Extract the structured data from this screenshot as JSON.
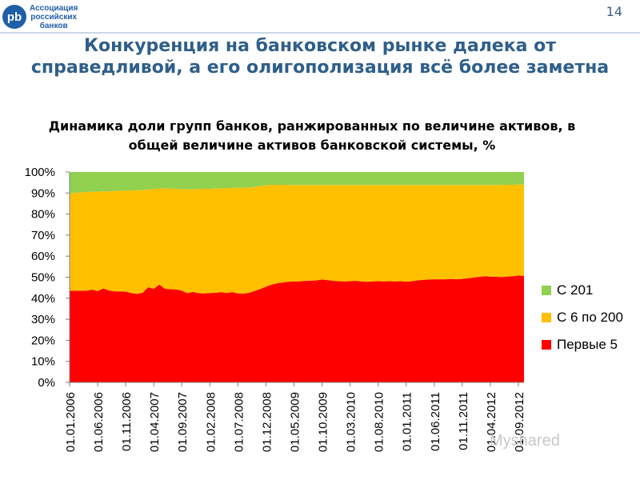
{
  "header": {
    "logo_mark": "pb",
    "logo_lines": [
      "Ассоциация",
      "российских",
      "банков"
    ],
    "page_number": "14",
    "title": "Конкуренция на банковском рынке далека от справедливой, а его олигополизация всё более заметна"
  },
  "watermark": "Myshared",
  "colors": {
    "c201": "#92d050",
    "c6_200": "#ffc000",
    "top5": "#ff0000"
  },
  "chart_data": {
    "type": "area",
    "stacked": true,
    "title": "Динамика доли групп банков, ранжированных по величине активов, в общей величине активов банковской системы, %",
    "xlabel": "",
    "ylabel": "",
    "ylim": [
      0,
      100
    ],
    "y_ticks": [
      "0%",
      "10%",
      "20%",
      "30%",
      "40%",
      "50%",
      "60%",
      "70%",
      "80%",
      "90%",
      "100%"
    ],
    "x_tick_labels": [
      "01.01.2006",
      "01.06.2006",
      "01.11.2006",
      "01.04.2007",
      "01.09.2007",
      "01.02.2008",
      "01.07.2008",
      "01.12.2008",
      "01.05.2009",
      "01.10.2009",
      "01.03.2010",
      "01.08.2010",
      "01.01.2011",
      "01.06.2011",
      "01.11.2011",
      "01.04.2012",
      "01.09.2012"
    ],
    "x": [
      "01.01.2006",
      "01.02.2006",
      "01.03.2006",
      "01.04.2006",
      "01.05.2006",
      "01.06.2006",
      "01.07.2006",
      "01.08.2006",
      "01.09.2006",
      "01.10.2006",
      "01.11.2006",
      "01.12.2006",
      "01.01.2007",
      "01.02.2007",
      "01.03.2007",
      "01.04.2007",
      "01.05.2007",
      "01.06.2007",
      "01.07.2007",
      "01.08.2007",
      "01.09.2007",
      "01.10.2007",
      "01.11.2007",
      "01.12.2007",
      "01.01.2008",
      "01.02.2008",
      "01.03.2008",
      "01.04.2008",
      "01.05.2008",
      "01.06.2008",
      "01.07.2008",
      "01.08.2008",
      "01.09.2008",
      "01.10.2008",
      "01.11.2008",
      "01.12.2008",
      "01.01.2009",
      "01.02.2009",
      "01.03.2009",
      "01.04.2009",
      "01.05.2009",
      "01.06.2009",
      "01.07.2009",
      "01.08.2009",
      "01.09.2009",
      "01.10.2009",
      "01.11.2009",
      "01.12.2009",
      "01.01.2010",
      "01.02.2010",
      "01.03.2010",
      "01.04.2010",
      "01.05.2010",
      "01.06.2010",
      "01.07.2010",
      "01.08.2010",
      "01.09.2010",
      "01.10.2010",
      "01.11.2010",
      "01.12.2010",
      "01.01.2011",
      "01.02.2011",
      "01.03.2011",
      "01.04.2011",
      "01.05.2011",
      "01.06.2011",
      "01.07.2011",
      "01.08.2011",
      "01.09.2011",
      "01.10.2011",
      "01.11.2011",
      "01.12.2011",
      "01.01.2012",
      "01.02.2012",
      "01.03.2012",
      "01.04.2012",
      "01.05.2012",
      "01.06.2012",
      "01.07.2012",
      "01.08.2012",
      "01.09.2012",
      "01.10.2012"
    ],
    "legend_position": "right",
    "series": [
      {
        "name": "Первые 5",
        "color": "#ff0000",
        "values": [
          43.6,
          43.6,
          43.6,
          43.6,
          44.1,
          43.4,
          44.7,
          43.7,
          43.3,
          43.2,
          43.1,
          42.5,
          42.1,
          42.6,
          45.2,
          44.5,
          46.5,
          44.5,
          44.3,
          44.2,
          43.6,
          42.4,
          43.0,
          42.4,
          42.3,
          42.5,
          42.6,
          42.9,
          42.5,
          42.9,
          42.3,
          42.2,
          42.6,
          43.5,
          44.4,
          45.5,
          46.5,
          47.1,
          47.5,
          47.8,
          48.0,
          48.0,
          48.3,
          48.4,
          48.5,
          48.9,
          48.6,
          48.3,
          48.1,
          48.0,
          48.1,
          48.3,
          48.0,
          47.8,
          48.0,
          48.1,
          48.0,
          48.1,
          48.0,
          48.1,
          47.9,
          48.1,
          48.5,
          48.7,
          48.9,
          49.0,
          49.0,
          49.0,
          49.2,
          49.0,
          49.2,
          49.5,
          49.8,
          50.2,
          50.5,
          50.3,
          50.2,
          50.1,
          50.3,
          50.5,
          50.8,
          50.6
        ]
      },
      {
        "name": "С 6 по 200",
        "color": "#ffc000",
        "values": [
          46.2,
          46.5,
          46.7,
          46.9,
          46.5,
          47.3,
          46.1,
          47.1,
          47.7,
          47.9,
          48.1,
          48.7,
          49.2,
          48.9,
          46.5,
          47.4,
          45.6,
          47.7,
          47.8,
          47.8,
          48.3,
          49.4,
          48.8,
          49.5,
          49.7,
          49.5,
          49.5,
          49.3,
          49.8,
          49.5,
          50.2,
          50.3,
          50.0,
          49.4,
          49.0,
          48.2,
          47.3,
          46.8,
          46.4,
          46.0,
          45.8,
          45.8,
          45.5,
          45.4,
          45.3,
          44.9,
          45.2,
          45.5,
          45.7,
          45.8,
          45.7,
          45.5,
          45.8,
          46.0,
          45.8,
          45.7,
          45.8,
          45.7,
          45.8,
          45.7,
          45.9,
          45.7,
          45.3,
          45.1,
          44.9,
          44.8,
          44.8,
          44.8,
          44.6,
          44.8,
          44.6,
          44.3,
          44.0,
          43.6,
          43.3,
          43.5,
          43.6,
          43.7,
          43.6,
          43.4,
          43.2,
          43.4
        ]
      },
      {
        "name": "С 201",
        "color": "#92d050",
        "values": [
          10.2,
          9.9,
          9.7,
          9.5,
          9.4,
          9.3,
          9.2,
          9.2,
          9.0,
          8.9,
          8.8,
          8.8,
          8.7,
          8.5,
          8.3,
          8.1,
          7.9,
          7.8,
          7.9,
          8.0,
          8.1,
          8.2,
          8.2,
          8.1,
          8.0,
          8.0,
          7.9,
          7.8,
          7.7,
          7.6,
          7.5,
          7.5,
          7.4,
          7.1,
          6.6,
          6.3,
          6.2,
          6.1,
          6.1,
          6.2,
          6.2,
          6.2,
          6.2,
          6.2,
          6.2,
          6.2,
          6.2,
          6.2,
          6.2,
          6.2,
          6.2,
          6.2,
          6.2,
          6.2,
          6.2,
          6.2,
          6.2,
          6.2,
          6.2,
          6.2,
          6.2,
          6.2,
          6.2,
          6.2,
          6.2,
          6.2,
          6.2,
          6.2,
          6.2,
          6.2,
          6.2,
          6.2,
          6.2,
          6.2,
          6.2,
          6.2,
          6.2,
          6.2,
          6.1,
          6.1,
          6.0,
          6.0
        ]
      }
    ]
  }
}
